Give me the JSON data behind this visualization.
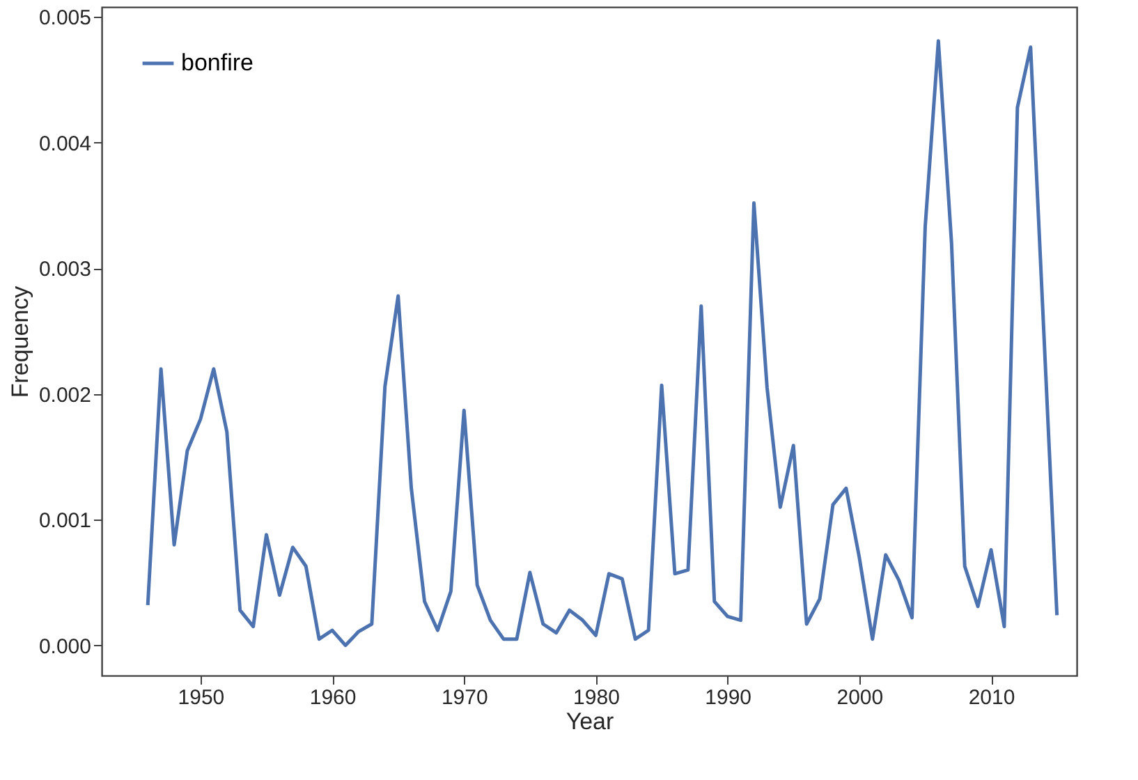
{
  "chart_data": {
    "type": "line",
    "xlabel": "Year",
    "ylabel": "Frequency",
    "x": [
      1946,
      1947,
      1948,
      1949,
      1950,
      1951,
      1952,
      1953,
      1954,
      1955,
      1956,
      1957,
      1958,
      1959,
      1960,
      1961,
      1962,
      1963,
      1964,
      1965,
      1966,
      1967,
      1968,
      1969,
      1970,
      1971,
      1972,
      1973,
      1974,
      1975,
      1976,
      1977,
      1978,
      1979,
      1980,
      1981,
      1982,
      1983,
      1984,
      1985,
      1986,
      1987,
      1988,
      1989,
      1990,
      1991,
      1992,
      1993,
      1994,
      1995,
      1996,
      1997,
      1998,
      1999,
      2000,
      2001,
      2002,
      2003,
      2004,
      2005,
      2006,
      2007,
      2008,
      2009,
      2010,
      2011,
      2012,
      2013,
      2014,
      2015
    ],
    "series": [
      {
        "name": "bonfire",
        "color": "#4c72b0",
        "values": [
          0.00032,
          0.0022,
          0.0008,
          0.00155,
          0.0018,
          0.0022,
          0.0017,
          0.00028,
          0.00015,
          0.00088,
          0.0004,
          0.00078,
          0.00063,
          5e-05,
          0.00012,
          0.0,
          0.00011,
          0.00017,
          0.00206,
          0.00278,
          0.00125,
          0.00035,
          0.00012,
          0.00043,
          0.00187,
          0.00048,
          0.0002,
          5e-05,
          5e-05,
          0.00058,
          0.00017,
          0.0001,
          0.00028,
          0.0002,
          8e-05,
          0.00057,
          0.00053,
          5e-05,
          0.00012,
          0.00207,
          0.00057,
          0.0006,
          0.0027,
          0.00035,
          0.00023,
          0.0002,
          0.00352,
          0.00205,
          0.0011,
          0.00159,
          0.00017,
          0.00037,
          0.00112,
          0.00125,
          0.0007,
          5e-05,
          0.00072,
          0.00052,
          0.00022,
          0.00333,
          0.00481,
          0.0032,
          0.00063,
          0.00031,
          0.00076,
          0.00015,
          0.00428,
          0.00476,
          0.0025,
          0.00024
        ]
      }
    ],
    "xlim": [
      1942.5,
      2016.5
    ],
    "xticks": [
      1950,
      1960,
      1970,
      1980,
      1990,
      2000,
      2010
    ],
    "ylim": [
      -0.00024,
      0.00508
    ],
    "yticks": [
      {
        "value": 0,
        "label": "0.000"
      },
      {
        "value": 0.001,
        "label": "0.001"
      },
      {
        "value": 0.002,
        "label": "0.002"
      },
      {
        "value": 0.003,
        "label": "0.003"
      },
      {
        "value": 0.004,
        "label": "0.004"
      },
      {
        "value": 0.005,
        "label": "0.005"
      }
    ],
    "grid": false,
    "legend": "top left",
    "marker": "none",
    "line_style": "solid"
  }
}
